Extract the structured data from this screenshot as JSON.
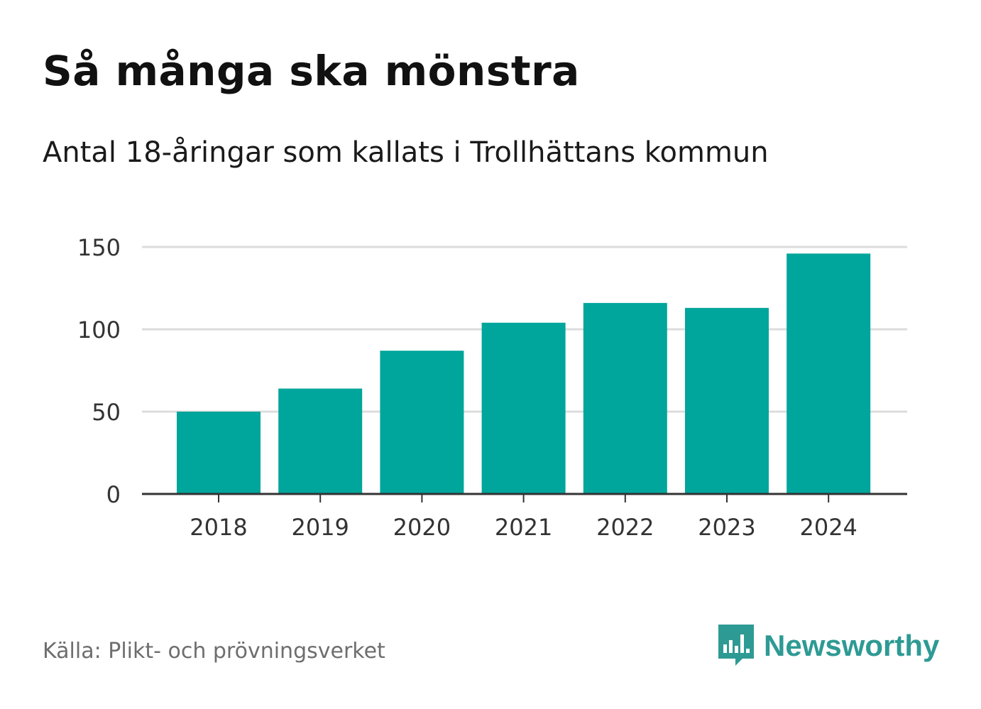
{
  "title": "Så många ska mönstra",
  "subtitle": "Antal 18-åringar som kallats i Trollhättans kommun",
  "source": "Källa: Plikt- och prövningsverket",
  "brand": {
    "name": "Newsworthy",
    "icon": "newsworthy-logo-icon",
    "color": "#2e9a94"
  },
  "chart_data": {
    "type": "bar",
    "categories": [
      "2018",
      "2019",
      "2020",
      "2021",
      "2022",
      "2023",
      "2024"
    ],
    "values": [
      50,
      64,
      87,
      104,
      116,
      113,
      146
    ],
    "ylim": [
      0,
      150
    ],
    "yticks": [
      0,
      50,
      100,
      150
    ],
    "grid": true,
    "bar_color": "#00a59b"
  }
}
